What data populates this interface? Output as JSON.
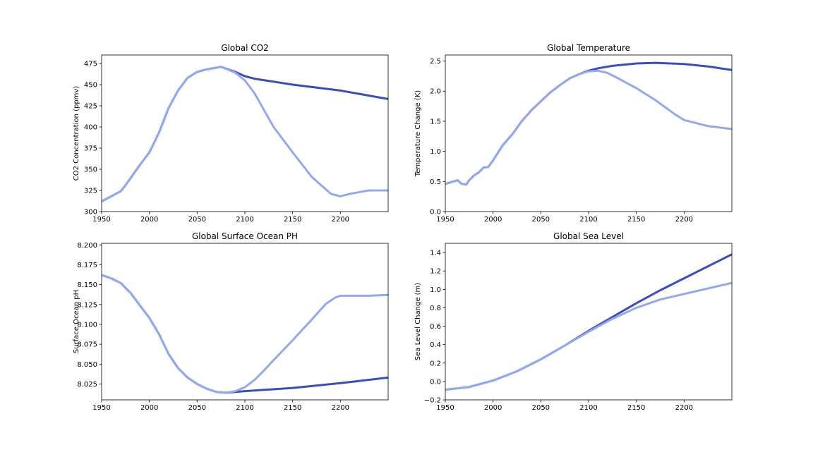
{
  "colors": {
    "dark_series": "#3a4dc0",
    "light_series": "#93a8ef",
    "axes": "#000000",
    "background": "#ffffff"
  },
  "chart_data": [
    {
      "type": "line",
      "title": "Global CO2",
      "xlabel": "",
      "ylabel": "CO2 Concentration (ppmv)",
      "xlim": [
        1950,
        2250
      ],
      "ylim": [
        300,
        485
      ],
      "xticks": [
        1950,
        2000,
        2050,
        2100,
        2150,
        2200
      ],
      "yticks": [
        300,
        325,
        350,
        375,
        400,
        425,
        450,
        475
      ],
      "xtick_labels": [
        "1950",
        "2000",
        "2050",
        "2100",
        "2150",
        "2200"
      ],
      "ytick_labels": [
        "300",
        "325",
        "350",
        "375",
        "400",
        "425",
        "450",
        "475"
      ],
      "series": [
        {
          "color_key": "dark_series",
          "x": [
            1950,
            1970,
            1975,
            1990,
            2000,
            2010,
            2020,
            2030,
            2040,
            2050,
            2060,
            2070,
            2075,
            2080,
            2090,
            2100,
            2110,
            2150,
            2200,
            2250
          ],
          "y": [
            312,
            324,
            331,
            355,
            370,
            393,
            422,
            443,
            458,
            465,
            468,
            470,
            471,
            469,
            465,
            460,
            457,
            450,
            443,
            433
          ]
        },
        {
          "color_key": "light_series",
          "x": [
            1950,
            1970,
            1975,
            1990,
            2000,
            2010,
            2020,
            2030,
            2040,
            2050,
            2060,
            2070,
            2075,
            2080,
            2090,
            2100,
            2110,
            2120,
            2130,
            2150,
            2170,
            2190,
            2200,
            2210,
            2230,
            2250
          ],
          "y": [
            312,
            324,
            331,
            355,
            370,
            393,
            422,
            443,
            458,
            465,
            468,
            470,
            471,
            469,
            464,
            455,
            440,
            420,
            400,
            370,
            341,
            321,
            318,
            321,
            325,
            325
          ]
        }
      ]
    },
    {
      "type": "line",
      "title": "Global Temperature",
      "xlabel": "",
      "ylabel": "Temperature Change (K)",
      "xlim": [
        1950,
        2250
      ],
      "ylim": [
        0,
        2.6
      ],
      "xticks": [
        1950,
        2000,
        2050,
        2100,
        2150,
        2200
      ],
      "yticks": [
        0,
        0.5,
        1.0,
        1.5,
        2.0,
        2.5
      ],
      "xtick_labels": [
        "1950",
        "2000",
        "2050",
        "2100",
        "2150",
        "2200"
      ],
      "ytick_labels": [
        "0.0",
        "0.5",
        "1.0",
        "1.5",
        "2.0",
        "2.5"
      ],
      "series": [
        {
          "color_key": "dark_series",
          "x": [
            1950,
            1963,
            1967,
            1972,
            1975,
            1980,
            1985,
            1990,
            1995,
            2000,
            2010,
            2020,
            2030,
            2040,
            2050,
            2060,
            2070,
            2080,
            2090,
            2100,
            2110,
            2125,
            2150,
            2170,
            2200,
            2225,
            2250
          ],
          "y": [
            0.46,
            0.52,
            0.46,
            0.45,
            0.52,
            0.6,
            0.65,
            0.73,
            0.74,
            0.85,
            1.1,
            1.28,
            1.5,
            1.68,
            1.83,
            1.98,
            2.1,
            2.21,
            2.28,
            2.34,
            2.38,
            2.42,
            2.46,
            2.47,
            2.45,
            2.41,
            2.35
          ]
        },
        {
          "color_key": "light_series",
          "x": [
            1950,
            1963,
            1967,
            1972,
            1975,
            1980,
            1985,
            1990,
            1995,
            2000,
            2010,
            2020,
            2030,
            2040,
            2050,
            2060,
            2070,
            2080,
            2090,
            2100,
            2110,
            2120,
            2130,
            2150,
            2170,
            2190,
            2200,
            2225,
            2250
          ],
          "y": [
            0.46,
            0.52,
            0.46,
            0.45,
            0.52,
            0.6,
            0.65,
            0.73,
            0.74,
            0.85,
            1.1,
            1.28,
            1.5,
            1.68,
            1.83,
            1.98,
            2.1,
            2.21,
            2.28,
            2.33,
            2.34,
            2.3,
            2.22,
            2.05,
            1.85,
            1.62,
            1.52,
            1.42,
            1.37
          ]
        }
      ]
    },
    {
      "type": "line",
      "title": "Global Surface Ocean PH",
      "xlabel": "",
      "ylabel": "Surface Ocean pH",
      "xlim": [
        1950,
        2250
      ],
      "ylim": [
        8.005,
        8.202
      ],
      "xticks": [
        1950,
        2000,
        2050,
        2100,
        2150,
        2200
      ],
      "yticks": [
        8.025,
        8.05,
        8.075,
        8.1,
        8.125,
        8.15,
        8.175,
        8.2
      ],
      "xtick_labels": [
        "1950",
        "2000",
        "2050",
        "2100",
        "2150",
        "2200"
      ],
      "ytick_labels": [
        "8.025",
        "8.050",
        "8.075",
        "8.100",
        "8.125",
        "8.150",
        "8.175",
        "8.200"
      ],
      "series": [
        {
          "color_key": "dark_series",
          "x": [
            1950,
            1960,
            1970,
            1980,
            1990,
            2000,
            2010,
            2020,
            2030,
            2040,
            2050,
            2060,
            2070,
            2080,
            2090,
            2100,
            2150,
            2200,
            2250
          ],
          "y": [
            8.162,
            8.158,
            8.152,
            8.14,
            8.124,
            8.108,
            8.088,
            8.063,
            8.045,
            8.033,
            8.025,
            8.019,
            8.015,
            8.014,
            8.015,
            8.016,
            8.02,
            8.026,
            8.033
          ]
        },
        {
          "color_key": "light_series",
          "x": [
            1950,
            1960,
            1970,
            1980,
            1990,
            2000,
            2010,
            2020,
            2030,
            2040,
            2050,
            2060,
            2070,
            2080,
            2090,
            2100,
            2110,
            2120,
            2130,
            2150,
            2170,
            2185,
            2195,
            2200,
            2210,
            2230,
            2250
          ],
          "y": [
            8.162,
            8.158,
            8.152,
            8.14,
            8.124,
            8.108,
            8.088,
            8.063,
            8.045,
            8.033,
            8.025,
            8.019,
            8.015,
            8.014,
            8.016,
            8.021,
            8.03,
            8.042,
            8.055,
            8.08,
            8.106,
            8.126,
            8.134,
            8.136,
            8.136,
            8.136,
            8.137
          ]
        }
      ]
    },
    {
      "type": "line",
      "title": "Global Sea Level",
      "xlabel": "",
      "ylabel": "Sea Level Change (m)",
      "xlim": [
        1950,
        2250
      ],
      "ylim": [
        -0.2,
        1.5
      ],
      "xticks": [
        1950,
        2000,
        2050,
        2100,
        2150,
        2200
      ],
      "yticks": [
        -0.2,
        0.0,
        0.2,
        0.4,
        0.6,
        0.8,
        1.0,
        1.2,
        1.4
      ],
      "xtick_labels": [
        "1950",
        "2000",
        "2050",
        "2100",
        "2150",
        "2200"
      ],
      "ytick_labels": [
        "−0.2",
        "0.0",
        "0.2",
        "0.4",
        "0.6",
        "0.8",
        "1.0",
        "1.2",
        "1.4"
      ],
      "series": [
        {
          "color_key": "dark_series",
          "x": [
            1950,
            1975,
            2000,
            2025,
            2050,
            2075,
            2100,
            2125,
            2150,
            2175,
            2200,
            2225,
            2250
          ],
          "y": [
            -0.09,
            -0.06,
            0.01,
            0.11,
            0.24,
            0.39,
            0.55,
            0.7,
            0.85,
            0.99,
            1.12,
            1.25,
            1.38
          ]
        },
        {
          "color_key": "light_series",
          "x": [
            1950,
            1975,
            2000,
            2025,
            2050,
            2075,
            2100,
            2125,
            2150,
            2175,
            2200,
            2225,
            2250
          ],
          "y": [
            -0.09,
            -0.06,
            0.01,
            0.11,
            0.24,
            0.39,
            0.54,
            0.68,
            0.8,
            0.89,
            0.95,
            1.01,
            1.07
          ]
        }
      ]
    }
  ]
}
